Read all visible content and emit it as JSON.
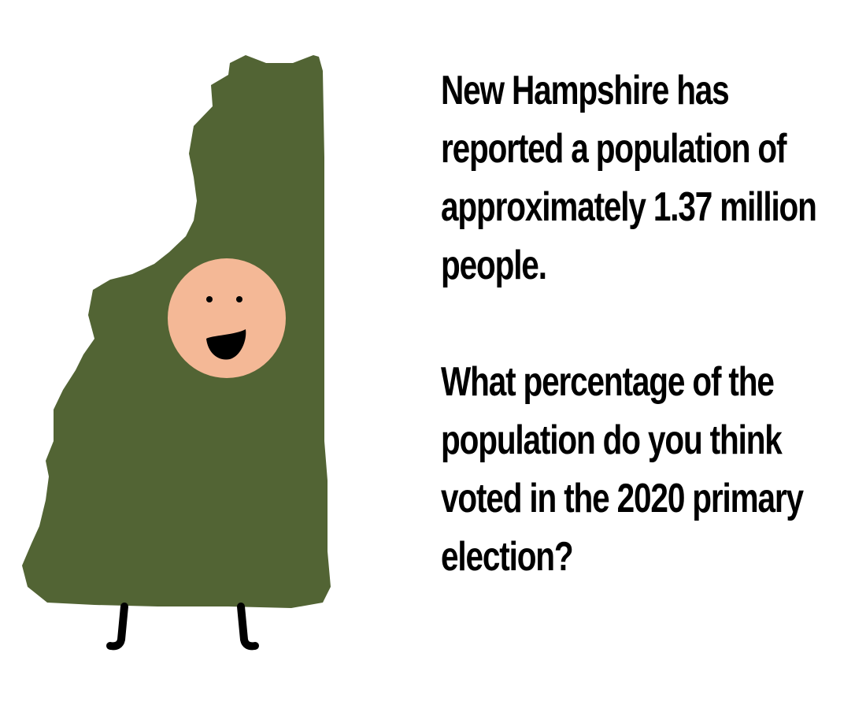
{
  "illustration": {
    "subject": "New Hampshire state-shaped character with smiling face and legs",
    "colors": {
      "state_fill": "#526434",
      "face": "#f4b896",
      "features": "#000000",
      "background": "#ffffff"
    }
  },
  "text": {
    "statement": "New Hampshire has reported a population of approximately 1.37 million people.",
    "question": "What percentage of the population do you think voted in the 2020 primary election?"
  }
}
